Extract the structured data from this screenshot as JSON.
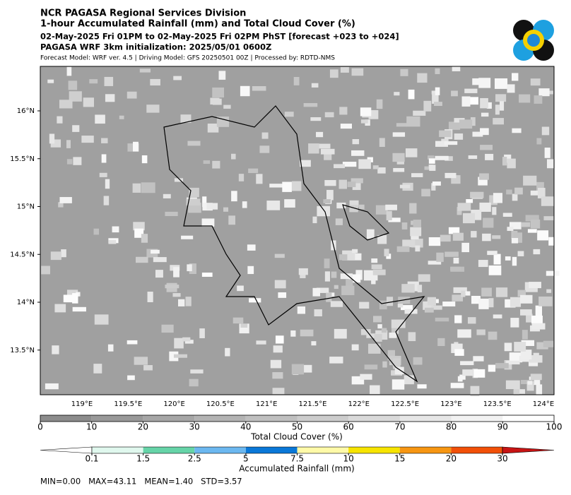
{
  "header": {
    "office": "NCR PAGASA Regional Services Division",
    "title": "1-hour Accumulated Rainfall (mm) and Total Cloud Cover (%)",
    "period": "02-May-2025 Fri 01PM to 02-May-2025 Fri 02PM PhST [forecast +023 to +024]",
    "init": "PAGASA WRF 3km initialization: 2025/05/01 0600Z",
    "model": "Forecast Model: WRF ver. 4.5 | Driving Model: GFS 20250501 00Z | Processed by: RDTD-NMS"
  },
  "map": {
    "lat_ticks": [
      {
        "value": 16,
        "label": "16°N"
      },
      {
        "value": 15.5,
        "label": "15.5°N"
      },
      {
        "value": 15,
        "label": "15°N"
      },
      {
        "value": 14.5,
        "label": "14.5°N"
      },
      {
        "value": 14,
        "label": "14°N"
      },
      {
        "value": 13.5,
        "label": "13.5°N"
      }
    ],
    "lon_ticks": [
      {
        "value": 119,
        "label": "119°E"
      },
      {
        "value": 119.5,
        "label": "119.5°E"
      },
      {
        "value": 120,
        "label": "120°E"
      },
      {
        "value": 120.5,
        "label": "120.5°E"
      },
      {
        "value": 121,
        "label": "121°E"
      },
      {
        "value": 121.5,
        "label": "121.5°E"
      },
      {
        "value": 122,
        "label": "122°E"
      },
      {
        "value": 122.5,
        "label": "122.5°E"
      },
      {
        "value": 123,
        "label": "123°E"
      },
      {
        "value": 123.5,
        "label": "123.5°E"
      },
      {
        "value": 124,
        "label": "124°E"
      }
    ]
  },
  "cloud_colorbar": {
    "label": "Total Cloud Cover (%)",
    "ticks": [
      0,
      10,
      20,
      30,
      40,
      50,
      60,
      70,
      80,
      90,
      100
    ],
    "colors": [
      "#8c8c8c",
      "#999999",
      "#a6a6a6",
      "#b3b3b3",
      "#bfbfbf",
      "#cccccc",
      "#d9d9d9",
      "#e6e6e6",
      "#f2f2f2",
      "#ffffff"
    ]
  },
  "rain_colorbar": {
    "label": "Accumulated Rainfall (mm)",
    "ticks": [
      0.1,
      1.5,
      2.5,
      5,
      7.5,
      10,
      15,
      20,
      30
    ],
    "colors": [
      "#ffffff",
      "#e0f8ee",
      "#66d4a8",
      "#6cb8f0",
      "#0a78d8",
      "#fffaa8",
      "#f7e400",
      "#f79612",
      "#f25008",
      "#c81414"
    ]
  },
  "stats": "MIN=0.00   MAX=43.11   MEAN=1.40   STD=3.57"
}
